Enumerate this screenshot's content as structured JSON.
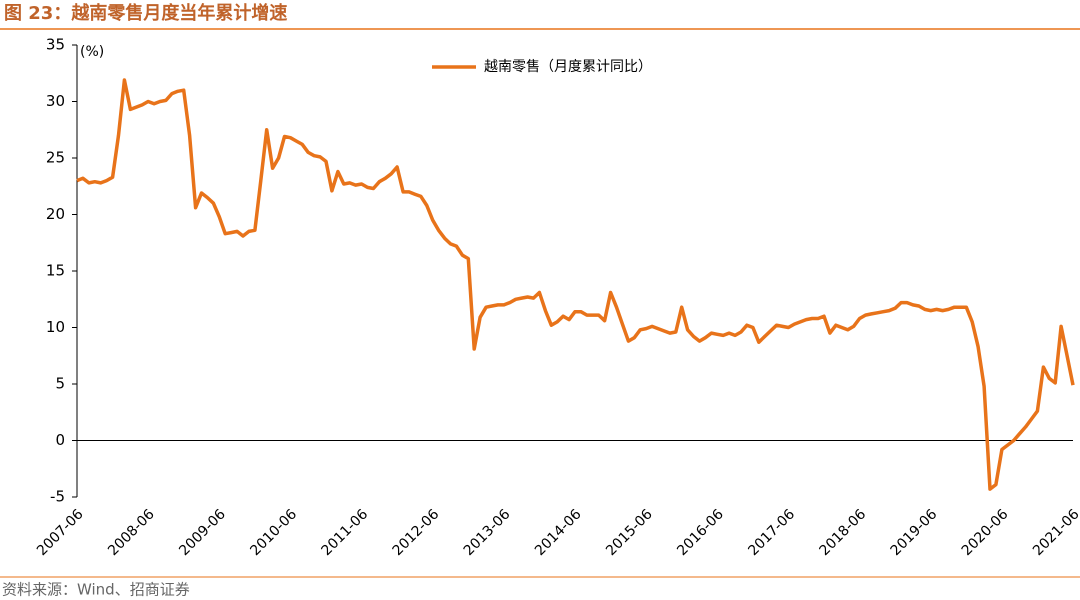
{
  "chart_data": {
    "type": "line",
    "title": "图 23：越南零售月度当年累计增速",
    "y_unit": "(%)",
    "source": "资料来源：Wind、招商证券",
    "legend": "top",
    "categories": [
      "2007-06",
      null,
      null,
      null,
      null,
      null,
      null,
      null,
      null,
      null,
      null,
      null,
      "2008-06",
      null,
      null,
      null,
      null,
      null,
      null,
      null,
      null,
      null,
      null,
      null,
      "2009-06",
      null,
      null,
      null,
      null,
      null,
      null,
      null,
      null,
      null,
      null,
      null,
      "2010-06",
      null,
      null,
      null,
      null,
      null,
      null,
      null,
      null,
      null,
      null,
      null,
      "2011-06",
      null,
      null,
      null,
      null,
      null,
      null,
      null,
      null,
      null,
      null,
      null,
      "2012-06",
      null,
      null,
      null,
      null,
      null,
      null,
      null,
      null,
      null,
      null,
      null,
      "2013-06",
      null,
      null,
      null,
      null,
      null,
      null,
      null,
      null,
      null,
      null,
      null,
      "2014-06",
      null,
      null,
      null,
      null,
      null,
      null,
      null,
      null,
      null,
      null,
      null,
      "2015-06",
      null,
      null,
      null,
      null,
      null,
      null,
      null,
      null,
      null,
      null,
      null,
      "2016-06",
      null,
      null,
      null,
      null,
      null,
      null,
      null,
      null,
      null,
      null,
      null,
      "2017-06",
      null,
      null,
      null,
      null,
      null,
      null,
      null,
      null,
      null,
      null,
      null,
      "2018-06",
      null,
      null,
      null,
      null,
      null,
      null,
      null,
      null,
      null,
      null,
      null,
      "2019-06",
      null,
      null,
      null,
      null,
      null,
      null,
      null,
      null,
      null,
      null,
      null,
      "2020-06",
      null,
      null,
      null,
      null,
      null,
      null,
      null,
      null,
      null,
      null,
      null,
      "2021-06"
    ],
    "series": [
      {
        "name": "越南零售（月度累计同比）",
        "color": "#e8731a",
        "values": [
          23,
          23.2,
          22.8,
          22.9,
          22.8,
          23,
          23.3,
          27,
          31.9,
          29.3,
          29.5,
          29.7,
          30.0,
          29.8,
          30.0,
          30.1,
          30.7,
          30.9,
          31.0,
          27,
          20.6,
          21.9,
          21.5,
          21.0,
          19.8,
          18.3,
          18.4,
          18.5,
          18.1,
          18.5,
          18.6,
          23,
          27.5,
          24.1,
          25,
          26.9,
          26.8,
          26.5,
          26.2,
          25.5,
          25.2,
          25.1,
          24.7,
          22.1,
          23.8,
          22.7,
          22.8,
          22.6,
          22.7,
          22.4,
          22.3,
          22.9,
          23.2,
          23.6,
          24.2,
          22.0,
          22.0,
          21.8,
          21.6,
          20.8,
          19.5,
          18.6,
          17.9,
          17.4,
          17.2,
          16.4,
          16.1,
          8.1,
          10.9,
          11.8,
          11.9,
          12.0,
          12.0,
          12.2,
          12.5,
          12.6,
          12.7,
          12.6,
          13.1,
          11.5,
          10.2,
          10.5,
          11.0,
          10.7,
          11.4,
          11.4,
          11.1,
          11.1,
          11.1,
          10.6,
          13.1,
          11.8,
          10.3,
          8.8,
          9.1,
          9.8,
          9.9,
          10.1,
          9.9,
          9.7,
          9.5,
          9.6,
          11.8,
          9.8,
          9.2,
          8.8,
          9.1,
          9.5,
          9.4,
          9.3,
          9.5,
          9.3,
          9.6,
          10.2,
          10.0,
          8.7,
          9.2,
          9.7,
          10.2,
          10.1,
          10.0,
          10.3,
          10.5,
          10.7,
          10.8,
          10.8,
          11.0,
          9.5,
          10.2,
          10.0,
          9.8,
          10.1,
          10.8,
          11.1,
          11.2,
          11.3,
          11.4,
          11.5,
          11.7,
          12.2,
          12.2,
          12.0,
          11.9,
          11.6,
          11.5,
          11.6,
          11.5,
          11.6,
          11.8,
          11.8,
          11.8,
          10.5,
          8.3,
          4.8,
          -4.3,
          -3.9,
          -0.8,
          -0.4,
          0.0,
          0.6,
          1.2,
          1.9,
          2.6,
          6.5,
          5.5,
          5.1,
          10.1,
          7.5,
          4.9
        ]
      }
    ],
    "ylim": [
      -5,
      35
    ],
    "yticks": [
      -5,
      0,
      5,
      10,
      15,
      20,
      25,
      30,
      35
    ]
  }
}
